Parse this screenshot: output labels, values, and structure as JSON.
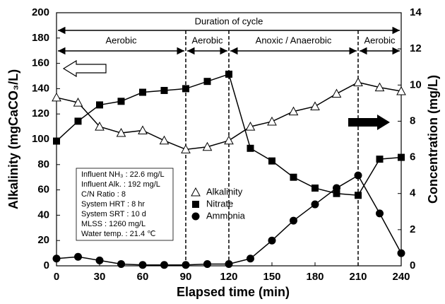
{
  "chart_data": {
    "type": "line",
    "x_label": "Elapsed time (min)",
    "y_label": "Alkalinity (mgCaCO₃/L)",
    "y2_label": "Concentration (mg/L)",
    "x": [
      0,
      15,
      30,
      45,
      60,
      75,
      90,
      105,
      120,
      135,
      150,
      165,
      180,
      195,
      210,
      225,
      240
    ],
    "xlim": [
      0,
      240
    ],
    "xticks": [
      0,
      30,
      60,
      90,
      120,
      150,
      180,
      210,
      240
    ],
    "ylim": [
      0,
      200
    ],
    "yticks": [
      0,
      20,
      40,
      60,
      80,
      100,
      120,
      140,
      160,
      180,
      200
    ],
    "y2lim": [
      0,
      14
    ],
    "y2ticks": [
      0,
      2,
      4,
      6,
      8,
      10,
      12,
      14
    ],
    "legend": "inside",
    "series": [
      {
        "name": "Alkalinity",
        "color": "#000000",
        "marker": "triangle-open",
        "axis": "y",
        "values": [
          133,
          129,
          110,
          105,
          107,
          99,
          92,
          94,
          99,
          110,
          114,
          122,
          126,
          136,
          145,
          141,
          138
        ]
      },
      {
        "name": "Nitrate",
        "color": "#000000",
        "marker": "square",
        "axis": "y2",
        "values": [
          6.9,
          8.0,
          8.9,
          9.1,
          9.6,
          9.7,
          9.8,
          10.2,
          10.6,
          6.5,
          5.8,
          4.9,
          4.3,
          4.0,
          3.9,
          5.9,
          6.0
        ]
      },
      {
        "name": "Ammonia",
        "color": "#000000",
        "marker": "circle",
        "axis": "y2",
        "values": [
          0.4,
          0.5,
          0.3,
          0.1,
          0.05,
          0.05,
          0.05,
          0.1,
          0.1,
          0.4,
          1.4,
          2.5,
          3.4,
          4.3,
          5.0,
          2.9,
          0.7
        ]
      }
    ],
    "cycle_label": "Duration of cycle",
    "phases": [
      {
        "label": "Aerobic",
        "start": 0,
        "end": 90
      },
      {
        "label": "Aerobic",
        "start": 90,
        "end": 120
      },
      {
        "label": "Anoxic / Anaerobic",
        "start": 120,
        "end": 210
      },
      {
        "label": "Aerobic",
        "start": 210,
        "end": 240
      }
    ],
    "info_box": [
      "Influent NH₃ : 22.6 mg/L",
      "Influent Alk. : 192 mg/L",
      "C/N Ratio : 8",
      "System HRT : 8 hr",
      "System SRT : 10 d",
      "MLSS : 1260 mg/L",
      "Water temp. : 21.4 ℃"
    ]
  }
}
